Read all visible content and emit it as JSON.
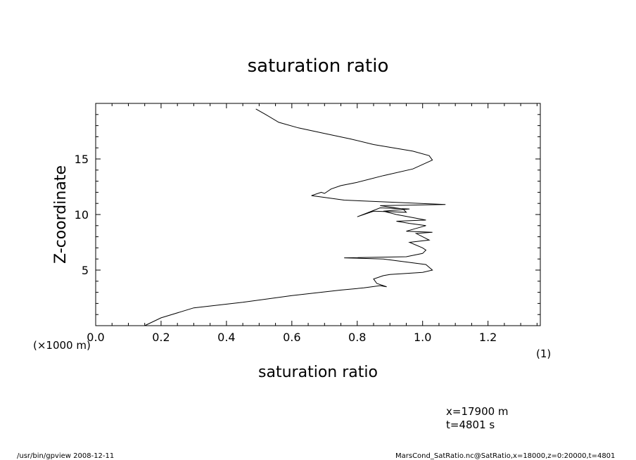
{
  "chart_data": {
    "type": "line",
    "title": "saturation ratio",
    "xlabel": "saturation ratio",
    "ylabel": "Z-coordinate",
    "x_unit": "(1)",
    "y_unit": "(×1000 m)",
    "xlim": [
      0.0,
      1.36
    ],
    "ylim": [
      0,
      20
    ],
    "x_ticks": [
      "0.0",
      "0.2",
      "0.4",
      "0.6",
      "0.8",
      "1.0",
      "1.2"
    ],
    "y_ticks": [
      "5",
      "10",
      "15"
    ],
    "grid": false,
    "series": [
      {
        "x": [
          0.15,
          0.2,
          0.3,
          0.45,
          0.6,
          0.75,
          0.82,
          0.87,
          0.89,
          0.86,
          0.85,
          0.88,
          0.9,
          0.95,
          1.0,
          1.03,
          1.01,
          0.88,
          0.76,
          0.95,
          1.0,
          1.01,
          1.0,
          0.96,
          1.02,
          1.0,
          0.98,
          1.03,
          0.95,
          1.01,
          0.96,
          0.92,
          1.01,
          0.92,
          0.88,
          0.96,
          0.87,
          0.8,
          0.85,
          0.95,
          0.94,
          0.87,
          1.07,
          0.76,
          0.66,
          0.69,
          0.7,
          0.72,
          0.75,
          0.8,
          0.88,
          0.97,
          1.03,
          1.02,
          0.97,
          0.85,
          0.78,
          0.7,
          0.62,
          0.56,
          0.52,
          0.49
        ],
        "y": [
          0.0,
          0.7,
          1.6,
          2.1,
          2.7,
          3.2,
          3.4,
          3.6,
          3.5,
          3.8,
          4.2,
          4.5,
          4.6,
          4.7,
          4.8,
          5.0,
          5.5,
          6.0,
          6.1,
          6.2,
          6.5,
          6.8,
          7.0,
          7.5,
          7.7,
          8.0,
          8.3,
          8.4,
          8.5,
          9.0,
          9.2,
          9.4,
          9.5,
          10.0,
          10.3,
          10.5,
          10.6,
          9.8,
          10.3,
          10.2,
          10.5,
          10.8,
          10.9,
          11.3,
          11.7,
          12.0,
          11.9,
          12.3,
          12.6,
          12.9,
          13.5,
          14.1,
          14.9,
          15.3,
          15.7,
          16.3,
          16.8,
          17.3,
          17.8,
          18.3,
          19.0,
          19.5
        ]
      }
    ]
  },
  "annotations": {
    "position_x": "x=17900 m",
    "time": "t=4801 s",
    "footer_left": "/usr/bin/gpview   2008-12-11",
    "footer_right": "MarsCond_SatRatio.nc@SatRatio,x=18000,z=0:20000,t=4801"
  }
}
